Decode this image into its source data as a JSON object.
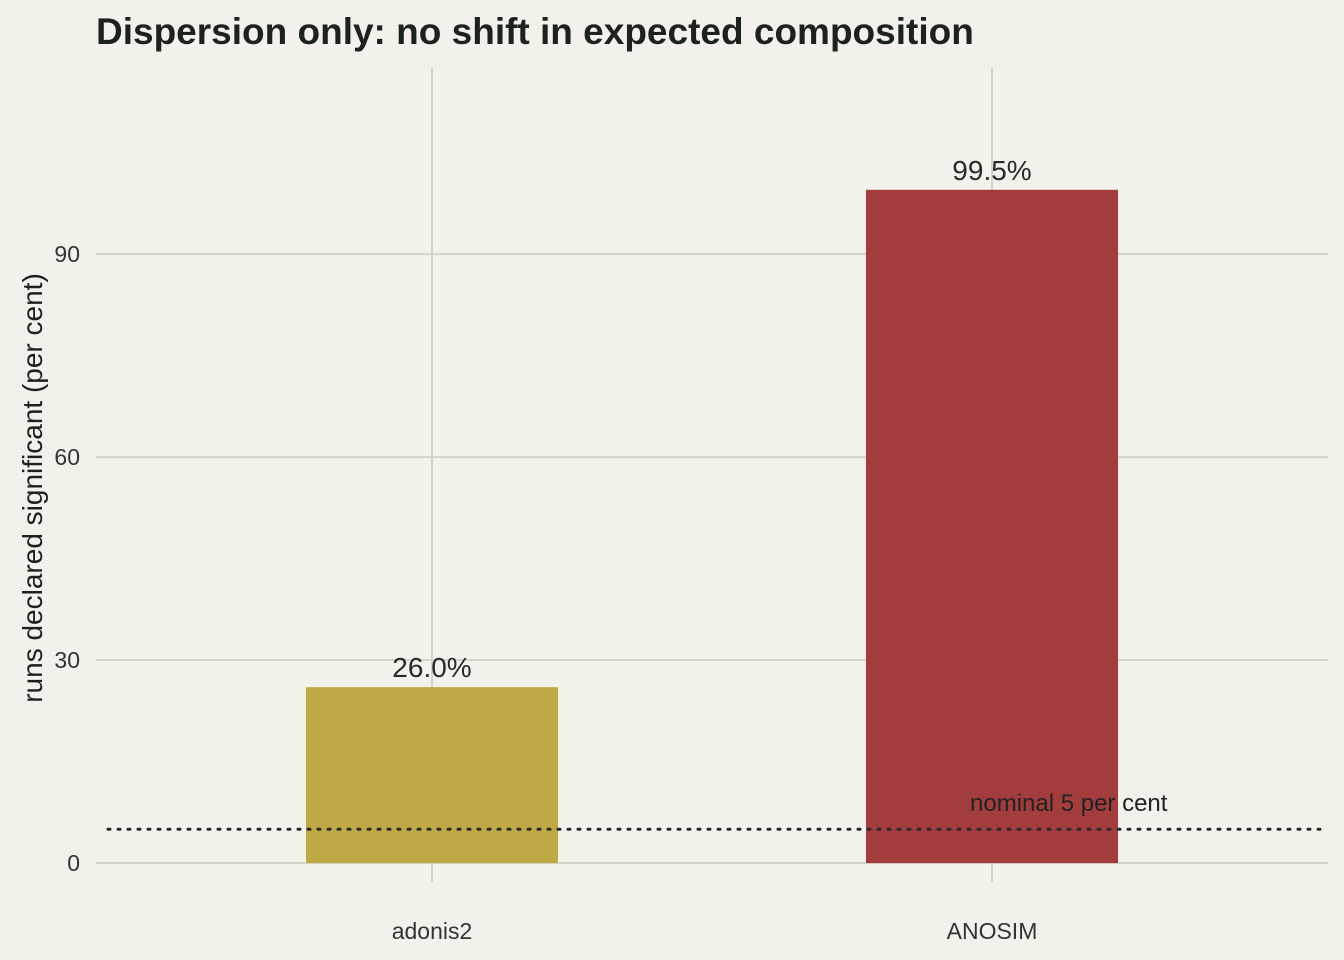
{
  "chart_data": {
    "type": "bar",
    "title": "Dispersion only: no shift in expected composition",
    "xlabel": "",
    "ylabel": "runs declared significant (per cent)",
    "categories": [
      "adonis2",
      "ANOSIM"
    ],
    "values": [
      26.0,
      99.5
    ],
    "value_labels": [
      "26.0%",
      "99.5%"
    ],
    "colors": [
      "#bfa846",
      "#a33d3d"
    ],
    "ylim": [
      -2.8,
      117.5
    ],
    "yticks": [
      0,
      30,
      60,
      90
    ],
    "ytick_labels": [
      "0",
      "30",
      "60",
      "90"
    ],
    "grid": true,
    "legend": "none",
    "reference_line": {
      "value": 5,
      "label": "nominal 5 per cent",
      "style": "dotted"
    }
  }
}
